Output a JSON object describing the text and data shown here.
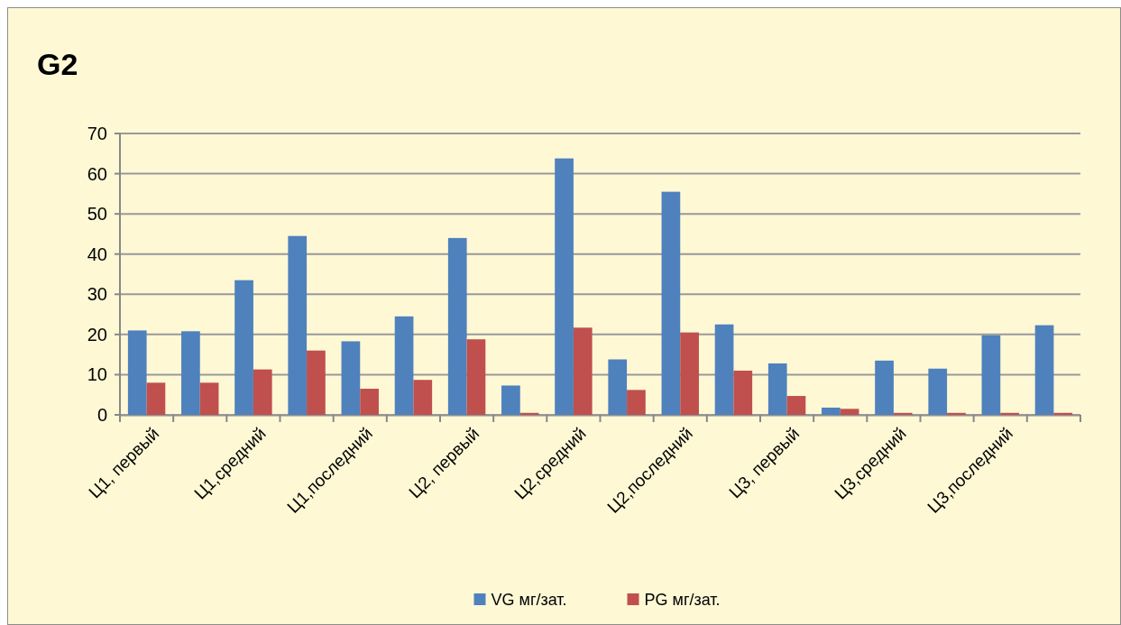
{
  "chart_data": {
    "type": "bar",
    "title": "G2",
    "categories": [
      "Ц1, первый",
      null,
      "Ц1,средний",
      null,
      "Ц1,последний",
      null,
      "Ц2, первый",
      null,
      "Ц2,средний",
      null,
      "Ц2,последний",
      null,
      "Ц3, первый",
      null,
      "Ц3,средний",
      null,
      "Ц3,последний",
      null
    ],
    "series": [
      {
        "name": "VG мг/зат.",
        "color": "#4f81bd",
        "values": [
          21,
          20.8,
          33.5,
          44.5,
          18.3,
          24.5,
          44,
          7.3,
          63.8,
          13.8,
          55.5,
          22.5,
          12.8,
          1.8,
          13.5,
          11.5,
          19.8,
          22.3
        ]
      },
      {
        "name": "PG мг/зат.",
        "color": "#c0504d",
        "values": [
          8,
          8,
          11.3,
          16,
          6.5,
          8.7,
          18.8,
          0.5,
          21.7,
          6.2,
          20.5,
          11,
          4.7,
          1.5,
          0.5,
          0.5,
          0.5,
          0.5
        ]
      }
    ],
    "ylim": [
      0,
      70
    ],
    "yticks": [
      0,
      10,
      20,
      30,
      40,
      50,
      60,
      70
    ],
    "grid": "y",
    "legend": "bottom"
  }
}
